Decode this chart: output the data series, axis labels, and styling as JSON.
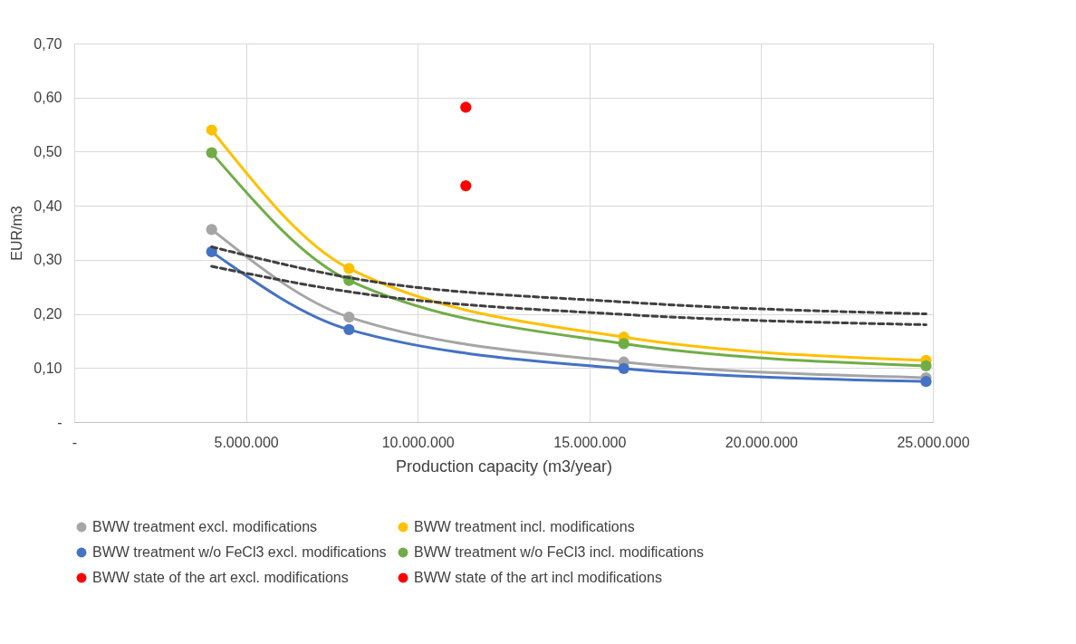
{
  "chart_data": {
    "type": "line",
    "xlabel": "Production capacity (m3/year)",
    "ylabel": "EUR/m3",
    "xlim": [
      0,
      25000000
    ],
    "ylim": [
      0,
      0.7
    ],
    "xticks": [
      {
        "value": 0,
        "label": "-"
      },
      {
        "value": 5000000,
        "label": "5.000.000"
      },
      {
        "value": 10000000,
        "label": "10.000.000"
      },
      {
        "value": 15000000,
        "label": "15.000.000"
      },
      {
        "value": 20000000,
        "label": "20.000.000"
      },
      {
        "value": 25000000,
        "label": "25.000.000"
      }
    ],
    "yticks": [
      {
        "value": 0,
        "label": "-"
      },
      {
        "value": 0.1,
        "label": "0,10"
      },
      {
        "value": 0.2,
        "label": "0,20"
      },
      {
        "value": 0.3,
        "label": "0,30"
      },
      {
        "value": 0.4,
        "label": "0,40"
      },
      {
        "value": 0.5,
        "label": "0,50"
      },
      {
        "value": 0.6,
        "label": "0,60"
      },
      {
        "value": 0.7,
        "label": "0,70"
      }
    ],
    "grid": true,
    "legend": "bottom",
    "marker": "circle",
    "series": [
      {
        "name": "BWW treatment excl. modifications",
        "color": "#a5a5a5",
        "x": [
          4000000,
          8000000,
          16000000,
          24800000
        ],
        "values": [
          0.356,
          0.194,
          0.111,
          0.082
        ]
      },
      {
        "name": "BWW treatment incl. modifications",
        "color": "#ffc000",
        "x": [
          4000000,
          8000000,
          16000000,
          24800000
        ],
        "values": [
          0.54,
          0.284,
          0.157,
          0.114
        ]
      },
      {
        "name": "BWW treatment w/o FeCl3 excl. modifications",
        "color": "#4472c4",
        "x": [
          4000000,
          8000000,
          16000000,
          24800000
        ],
        "values": [
          0.315,
          0.171,
          0.099,
          0.075
        ]
      },
      {
        "name": "BWW treatment w/o FeCl3 incl. modifications",
        "color": "#70ad47",
        "x": [
          4000000,
          8000000,
          16000000,
          24800000
        ],
        "values": [
          0.498,
          0.262,
          0.145,
          0.104
        ]
      },
      {
        "name": "BWW state of the art excl. modifications",
        "type": "scatter",
        "color": "#ff0000",
        "x": [
          11400000
        ],
        "values": [
          0.437
        ]
      },
      {
        "name": "BWW state of the art incl modifications",
        "type": "scatter",
        "color": "#ff0000",
        "x": [
          11400000
        ],
        "values": [
          0.582
        ]
      },
      {
        "type": "line",
        "color": "#404040",
        "line_style": "dashed",
        "marker": "none",
        "x": [
          4000000,
          8000000,
          16000000,
          24800000
        ],
        "values": [
          0.324,
          0.267,
          0.222,
          0.2
        ]
      },
      {
        "type": "line",
        "color": "#404040",
        "line_style": "dashed",
        "marker": "none",
        "x": [
          4000000,
          8000000,
          16000000,
          24800000
        ],
        "values": [
          0.288,
          0.241,
          0.199,
          0.18
        ]
      }
    ]
  }
}
